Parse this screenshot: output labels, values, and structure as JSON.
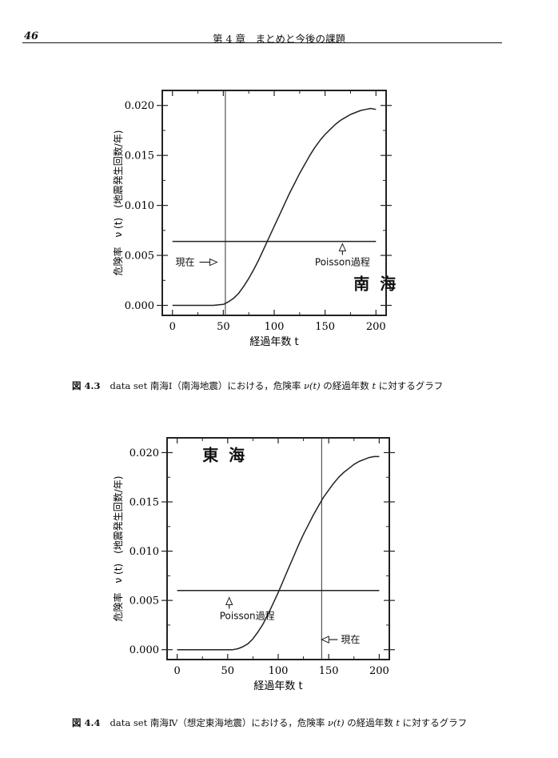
{
  "page_header": {
    "page_number": "46",
    "running_title": "第 4 章　まとめと今後の課題"
  },
  "chart_data": [
    {
      "type": "line",
      "title": "",
      "xlabel": "経過年数 t",
      "ylabel": "危険率　ν (t)　(地震発生回数/年)",
      "xlim": [
        -10,
        210
      ],
      "ylim": [
        -0.001,
        0.0215
      ],
      "xticks": [
        0,
        50,
        100,
        150,
        200
      ],
      "xtick_labels": [
        "0",
        "50",
        "100",
        "150",
        "200"
      ],
      "yticks": [
        0.0,
        0.005,
        0.01,
        0.015,
        0.02
      ],
      "ytick_labels": [
        "0.000",
        "0.005",
        "0.010",
        "0.015",
        "0.020"
      ],
      "grid": false,
      "series": [
        {
          "x": [
            0,
            10,
            20,
            30,
            40,
            50,
            55,
            60,
            65,
            70,
            75,
            80,
            85,
            90,
            95,
            100,
            105,
            110,
            115,
            120,
            125,
            130,
            135,
            140,
            145,
            150,
            155,
            160,
            165,
            170,
            175,
            180,
            185,
            190,
            195,
            200
          ],
          "values": [
            0.0,
            0.0,
            0.0,
            0.0,
            0.0,
            0.0001,
            0.00035,
            0.0007,
            0.0012,
            0.0019,
            0.0027,
            0.0036,
            0.0046,
            0.0057,
            0.0068,
            0.0079,
            0.009,
            0.0101,
            0.0112,
            0.0122,
            0.0132,
            0.0141,
            0.015,
            0.0158,
            0.0165,
            0.0171,
            0.0176,
            0.0181,
            0.0185,
            0.0188,
            0.0191,
            0.0193,
            0.0195,
            0.0196,
            0.0197,
            0.0196
          ]
        },
        {
          "x": [
            0,
            200
          ],
          "values": [
            0.0064,
            0.0064
          ]
        }
      ],
      "vline_x": 52,
      "annotations": [
        {
          "text": "現在",
          "x": 3,
          "y": 0.004,
          "arrow": "right"
        },
        {
          "text": "Poisson過程",
          "x": 140,
          "y": 0.004,
          "arrow": "up"
        },
        {
          "text": "南 海",
          "x": 178,
          "y": 0.0016
        }
      ]
    },
    {
      "type": "line",
      "title": "",
      "xlabel": "経過年数 t",
      "ylabel": "危険率　ν (t)　(地震発生回数/年)",
      "xlim": [
        -10,
        210
      ],
      "ylim": [
        -0.001,
        0.0215
      ],
      "xticks": [
        0,
        50,
        100,
        150,
        200
      ],
      "xtick_labels": [
        "0",
        "50",
        "100",
        "150",
        "200"
      ],
      "yticks": [
        0.0,
        0.005,
        0.01,
        0.015,
        0.02
      ],
      "ytick_labels": [
        "0.000",
        "0.005",
        "0.010",
        "0.015",
        "0.020"
      ],
      "grid": false,
      "series": [
        {
          "x": [
            0,
            10,
            20,
            30,
            40,
            50,
            55,
            60,
            65,
            70,
            75,
            80,
            85,
            90,
            95,
            100,
            105,
            110,
            115,
            120,
            125,
            130,
            135,
            140,
            145,
            150,
            155,
            160,
            165,
            170,
            175,
            180,
            185,
            190,
            195,
            200
          ],
          "values": [
            0.0,
            0.0,
            0.0,
            0.0,
            0.0,
            0.0,
            0.0,
            0.0001,
            0.0003,
            0.0006,
            0.0011,
            0.0018,
            0.0026,
            0.0036,
            0.0047,
            0.0058,
            0.007,
            0.0082,
            0.0094,
            0.0106,
            0.0117,
            0.0127,
            0.0137,
            0.0146,
            0.0155,
            0.0162,
            0.0169,
            0.0175,
            0.018,
            0.0184,
            0.0188,
            0.0191,
            0.0193,
            0.0195,
            0.0196,
            0.0196
          ]
        },
        {
          "x": [
            0,
            200
          ],
          "values": [
            0.006,
            0.006
          ]
        }
      ],
      "vline_x": 143,
      "annotations": [
        {
          "text": "東 海",
          "x": 25,
          "y": 0.0192
        },
        {
          "text": "Poisson過程",
          "x": 42,
          "y": 0.0031,
          "arrow": "up"
        },
        {
          "text": "現在",
          "x": 162,
          "y": 0.0007,
          "arrow": "left"
        }
      ]
    }
  ],
  "captions": [
    {
      "label": "図 4.3",
      "text_before": "data set 南海Ⅰ（南海地震）における，危険率 ",
      "nu": "ν(t)",
      "text_mid": " の経過年数 ",
      "t": "t",
      "text_after": " に対するグラフ"
    },
    {
      "label": "図 4.4",
      "text_before": "data set 南海Ⅳ（想定東海地震）における，危険率 ",
      "nu": "ν(t)",
      "text_mid": " の経過年数 ",
      "t": "t",
      "text_after": " に対するグラフ"
    }
  ]
}
